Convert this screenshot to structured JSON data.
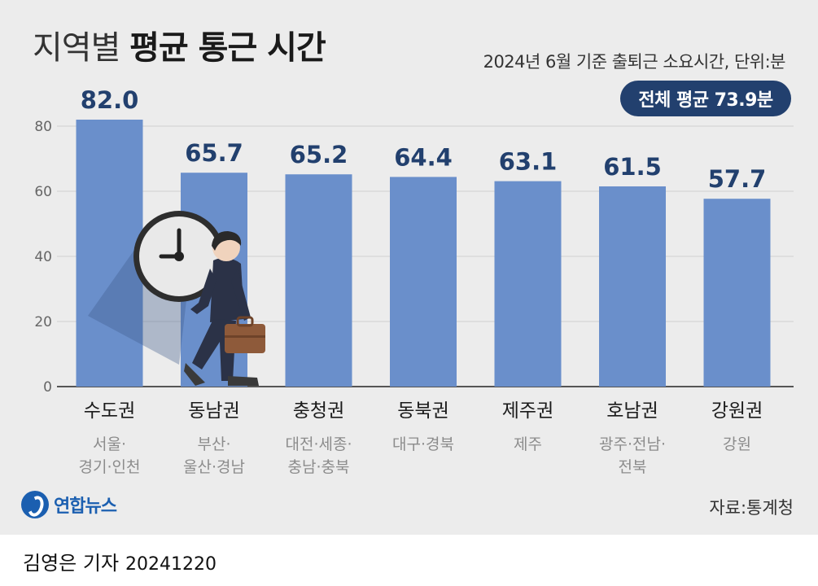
{
  "title": {
    "light": "지역별",
    "bold": "평균 통근 시간"
  },
  "subtitle": "2024년 6월 기준 출퇴근 소요시간, 단위:분",
  "average_badge": "전체 평균 73.9분",
  "chart_data": {
    "type": "bar",
    "title": "지역별 평균 통근 시간",
    "subtitle": "2024년 6월 기준 출퇴근 소요시간, 단위:분",
    "categories": [
      "수도권",
      "동남권",
      "충청권",
      "동북권",
      "제주권",
      "호남권",
      "강원권"
    ],
    "sublabels": [
      [
        "서울·",
        "경기·인천"
      ],
      [
        "부산·",
        "울산·경남"
      ],
      [
        "대전·세종·",
        "충남·충북"
      ],
      [
        "대구·경북"
      ],
      [
        "제주"
      ],
      [
        "광주·전남·",
        "전북"
      ],
      [
        "강원"
      ]
    ],
    "values": [
      82.0,
      65.7,
      65.2,
      64.4,
      63.1,
      61.5,
      57.7
    ],
    "value_labels": [
      "82.0",
      "65.7",
      "65.2",
      "64.4",
      "63.1",
      "61.5",
      "57.7"
    ],
    "yticks": [
      0,
      20,
      40,
      60,
      80
    ],
    "ylim": [
      0,
      80
    ],
    "grid": true,
    "bar_color": "#6a8fcb",
    "value_color": "#22406e"
  },
  "source": "자료:통계청",
  "logo_text": "연합뉴스",
  "footer": {
    "author": "김영은 기자",
    "date": "20241220"
  },
  "colors": {
    "background": "#ececec",
    "accent": "#22406e",
    "bar": "#6a8fcb"
  },
  "illustration": "commuter-with-clock-icon"
}
